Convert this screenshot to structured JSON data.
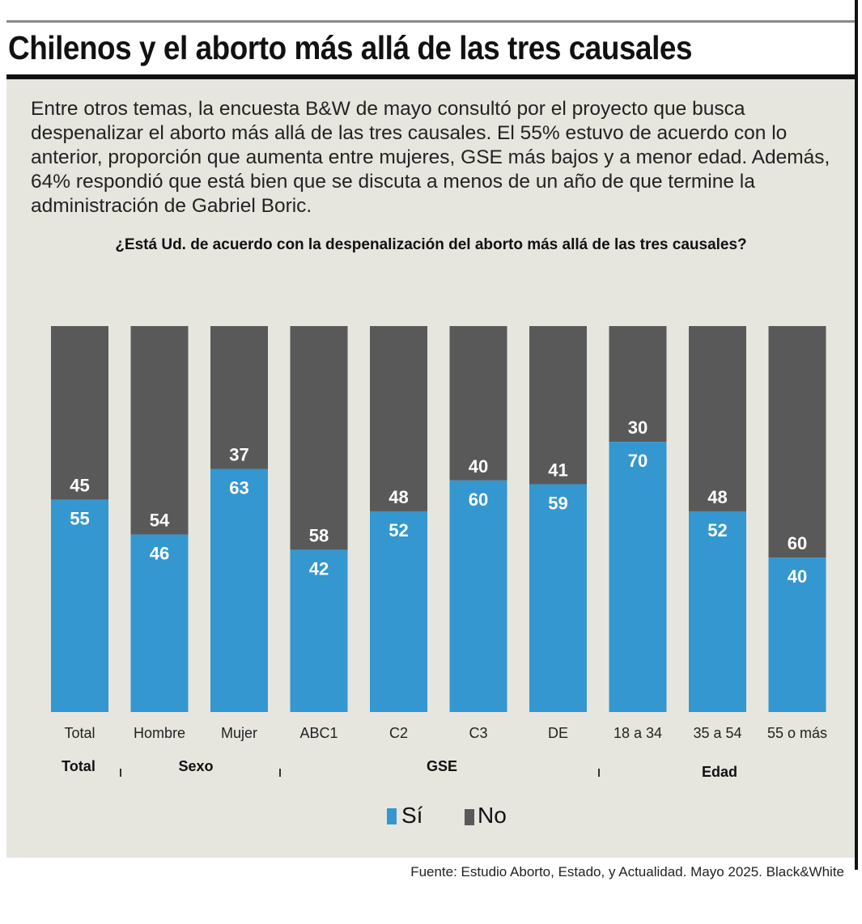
{
  "title": "Chilenos y el aborto más allá de las tres causales",
  "intro": "Entre otros temas, la encuesta B&W de mayo consultó por el proyecto que busca despenalizar el aborto más allá de las tres causales. El 55% estuvo de acuerdo con lo anterior, proporción que aumenta entre mujeres, GSE más bajos y a menor edad. Además, 64% respondió que está bien que se discuta a menos de un año de que termine la administración de Gabriel Boric.",
  "source": "Fuente: Estudio Aborto, Estado, y Actualidad. Mayo 2025. Black&White",
  "colors": {
    "si": "#3497cf",
    "no": "#595959",
    "background": "#e6e6de"
  },
  "chart_data": {
    "type": "bar",
    "stacked": true,
    "title": "¿Está Ud. de acuerdo con la despenalización del aborto más allá de las tres causales?",
    "categories": [
      "Total",
      "Hombre",
      "Mujer",
      "ABC1",
      "C2",
      "C3",
      "DE",
      "18 a 34",
      "35 a 54",
      "55 o más"
    ],
    "groups": [
      {
        "label": "Total",
        "categories": [
          "Total"
        ]
      },
      {
        "label": "Sexo",
        "categories": [
          "Hombre",
          "Mujer"
        ]
      },
      {
        "label": "GSE",
        "categories": [
          "ABC1",
          "C2",
          "C3",
          "DE"
        ]
      },
      {
        "label": "Edad",
        "categories": [
          "18 a 34",
          "35 a 54",
          "55 o más"
        ]
      }
    ],
    "series": [
      {
        "name": "Sí",
        "values": [
          55,
          46,
          63,
          42,
          52,
          60,
          59,
          70,
          52,
          40
        ]
      },
      {
        "name": "No",
        "values": [
          45,
          54,
          37,
          58,
          48,
          40,
          41,
          30,
          48,
          60
        ]
      }
    ],
    "ylim": [
      0,
      100
    ],
    "grid": false,
    "legend": "bottom-center"
  }
}
